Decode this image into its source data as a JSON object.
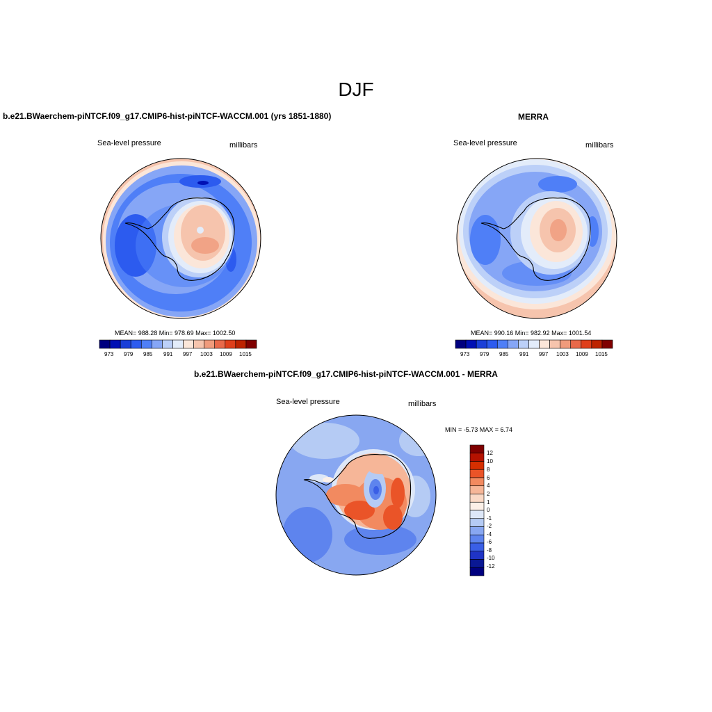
{
  "title": "DJF",
  "panels": [
    {
      "id": "model",
      "title": "b.e21.BWaerchem-piNTCF.f09_g17.CMIP6-hist-piNTCF-WACCM.001 (yrs 1851-1880)",
      "left_label": "Sea-level pressure",
      "right_label": "millibars",
      "stats": "MEAN= 988.28  Min= 978.69  Max= 1002.50",
      "colorbar_ticks": [
        "973",
        "979",
        "985",
        "991",
        "997",
        "1003",
        "1009",
        "1015"
      ]
    },
    {
      "id": "merra",
      "title": "MERRA",
      "left_label": "Sea-level pressure",
      "right_label": "millibars",
      "stats": "MEAN= 990.16  Min= 982.92  Max= 1001.54",
      "colorbar_ticks": [
        "973",
        "979",
        "985",
        "991",
        "997",
        "1003",
        "1009",
        "1015"
      ]
    },
    {
      "id": "diff",
      "title": "b.e21.BWaerchem-piNTCF.f09_g17.CMIP6-hist-piNTCF-WACCM.001 - MERRA",
      "left_label": "Sea-level pressure",
      "right_label": "millibars",
      "stats": "MIN =  -5.73 MAX =   6.74",
      "colorbar_ticks": [
        "12",
        "10",
        "8",
        "6",
        "4",
        "2",
        "1",
        "0",
        "-1",
        "-2",
        "-4",
        "-6",
        "-8",
        "-10",
        "-12"
      ]
    }
  ],
  "colors": {
    "full_scale": [
      "#00007f",
      "#0010b4",
      "#1a3fd8",
      "#2c5bef",
      "#4f7ff7",
      "#86a6f6",
      "#bcd0f8",
      "#e3ecfa",
      "#fbe6d9",
      "#f6c4ad",
      "#f09b7c",
      "#e8694a",
      "#df3f1b",
      "#bd2300",
      "#7f0000"
    ],
    "diff_scale": [
      "#7f0000",
      "#b41200",
      "#d62f00",
      "#ea5428",
      "#f28a60",
      "#f6b698",
      "#fad9c6",
      "#fcf0e8",
      "#dde7f8",
      "#b5cbf4",
      "#88a7f1",
      "#5e84ee",
      "#3a5fe6",
      "#1f34c6",
      "#0a1894",
      "#00007f"
    ]
  }
}
